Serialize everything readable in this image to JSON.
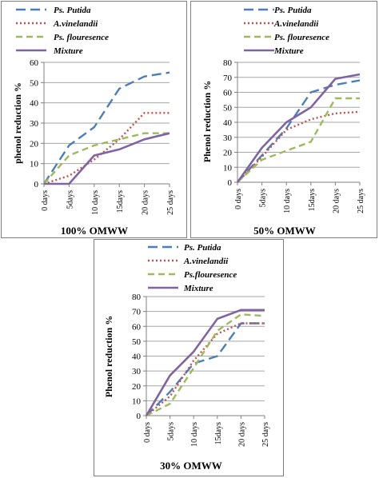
{
  "charts": [
    {
      "caption": "100% OMWW",
      "ylabel": "phenol reduction %",
      "yticks": [
        0,
        10,
        20,
        30,
        40,
        50,
        60
      ],
      "ylim": [
        0,
        60
      ]
    },
    {
      "caption": "50% OMWW",
      "ylabel": "Phenol reduction %",
      "yticks": [
        0,
        10,
        20,
        30,
        40,
        50,
        60,
        70,
        80
      ],
      "ylim": [
        0,
        80
      ]
    },
    {
      "caption": "30% OMWW",
      "ylabel": "Phenol reduction %",
      "yticks": [
        0,
        10,
        20,
        30,
        40,
        50,
        60,
        70,
        80
      ],
      "ylim": [
        0,
        80
      ]
    }
  ],
  "chart_data": [
    {
      "type": "line",
      "title": "100% OMWW",
      "xlabel": "",
      "ylabel": "phenol reduction %",
      "categories": [
        "0 days",
        "5days",
        "10 days",
        "15days",
        "20 days",
        "25 days"
      ],
      "ylim": [
        0,
        60
      ],
      "grid": true,
      "legend": "top",
      "series": [
        {
          "name": "Ps. Putida",
          "values": [
            0,
            19,
            28,
            47,
            53,
            55
          ]
        },
        {
          "name": "A.vinelandii",
          "values": [
            0,
            4,
            12,
            22,
            35,
            35
          ]
        },
        {
          "name": "Ps. flouresence",
          "values": [
            0,
            14,
            19,
            22,
            25,
            25
          ]
        },
        {
          "name": "Mixture",
          "values": [
            0,
            0,
            14,
            17,
            22,
            25
          ]
        }
      ]
    },
    {
      "type": "line",
      "title": "50% OMWW",
      "xlabel": "",
      "ylabel": "Phenol reduction %",
      "categories": [
        "0 days",
        "5days",
        "10 days",
        "15days",
        "20 days",
        "25 days"
      ],
      "ylim": [
        0,
        80
      ],
      "grid": true,
      "legend": "top",
      "series": [
        {
          "name": "Ps. Putida",
          "values": [
            0,
            18,
            36,
            60,
            65,
            68
          ]
        },
        {
          "name": "A.vinelandii",
          "values": [
            0,
            17,
            35,
            42,
            46,
            47
          ]
        },
        {
          "name": "Ps. flouresence",
          "values": [
            0,
            15,
            21,
            27,
            56,
            56
          ]
        },
        {
          "name": "Mixture",
          "values": [
            0,
            23,
            40,
            50,
            69,
            72
          ]
        }
      ]
    },
    {
      "type": "line",
      "title": "30% OMWW",
      "xlabel": "",
      "ylabel": "Phenol reduction %",
      "categories": [
        "0 days",
        "5days",
        "10 days",
        "15days",
        "20 days",
        "25 days"
      ],
      "ylim": [
        0,
        80
      ],
      "grid": true,
      "legend": "top",
      "series": [
        {
          "name": "Ps. Putida",
          "values": [
            0,
            16,
            35,
            40,
            62,
            62
          ]
        },
        {
          "name": "A.vinelandii",
          "values": [
            0,
            13,
            37,
            55,
            62,
            62
          ]
        },
        {
          "name": "Ps.flouresence",
          "values": [
            0,
            8,
            32,
            57,
            68,
            67
          ]
        },
        {
          "name": "Mixture",
          "values": [
            0,
            27,
            43,
            65,
            71,
            71
          ]
        }
      ]
    }
  ],
  "style": {
    "series_colors": [
      "#4a7ebb",
      "#c0504d",
      "#9bbb59",
      "#8064a2"
    ],
    "series_dash": [
      "12 6",
      "2 3",
      "8 5",
      ""
    ],
    "grid_color": "#a6a6a6",
    "axis_color": "#7f7f7f"
  }
}
